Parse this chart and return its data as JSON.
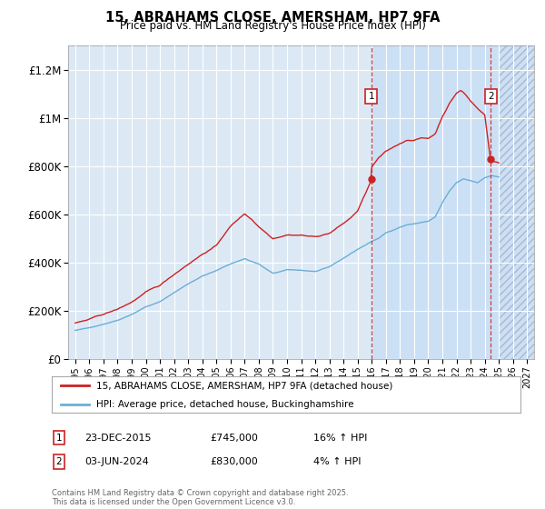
{
  "title": "15, ABRAHAMS CLOSE, AMERSHAM, HP7 9FA",
  "subtitle": "Price paid vs. HM Land Registry's House Price Index (HPI)",
  "ylabel_ticks": [
    "£0",
    "£200K",
    "£400K",
    "£600K",
    "£800K",
    "£1M",
    "£1.2M"
  ],
  "ytick_values": [
    0,
    200000,
    400000,
    600000,
    800000,
    1000000,
    1200000
  ],
  "ylim": [
    0,
    1300000
  ],
  "xlim": [
    1994.5,
    2027.5
  ],
  "xticks": [
    1995,
    1996,
    1997,
    1998,
    1999,
    2000,
    2001,
    2002,
    2003,
    2004,
    2005,
    2006,
    2007,
    2008,
    2009,
    2010,
    2011,
    2012,
    2013,
    2014,
    2015,
    2016,
    2017,
    2018,
    2019,
    2020,
    2021,
    2022,
    2023,
    2024,
    2025,
    2026,
    2027
  ],
  "hpi_color": "#6baed6",
  "price_color": "#cc2222",
  "transaction1_x": 2015.97,
  "transaction1_y": 745000,
  "transaction2_x": 2024.42,
  "transaction2_y": 830000,
  "highlight_start_x": 2015.97,
  "hatch_start_x": 2025.0,
  "legend_line1": "15, ABRAHAMS CLOSE, AMERSHAM, HP7 9FA (detached house)",
  "legend_line2": "HPI: Average price, detached house, Buckinghamshire",
  "table_row1_num": "1",
  "table_row1_date": "23-DEC-2015",
  "table_row1_price": "£745,000",
  "table_row1_hpi": "16% ↑ HPI",
  "table_row2_num": "2",
  "table_row2_date": "03-JUN-2024",
  "table_row2_price": "£830,000",
  "table_row2_hpi": "4% ↑ HPI",
  "footer": "Contains HM Land Registry data © Crown copyright and database right 2025.\nThis data is licensed under the Open Government Licence v3.0.",
  "background_color": "#ffffff",
  "plot_bg_color": "#dce9f5",
  "highlight_bg_color": "#cce0f5",
  "grid_color": "#ffffff"
}
